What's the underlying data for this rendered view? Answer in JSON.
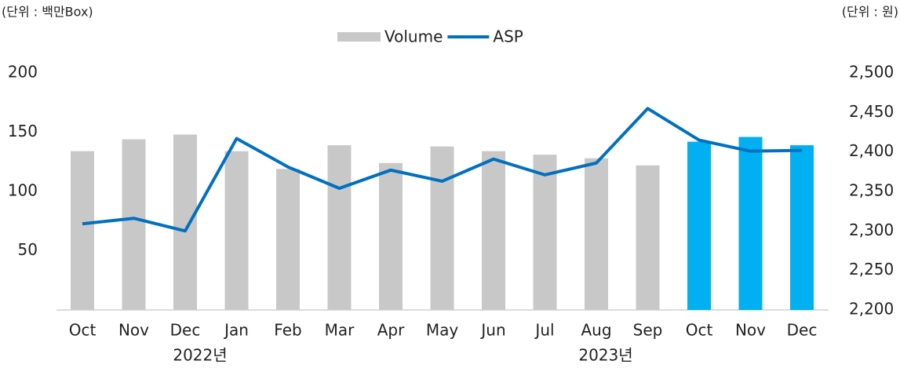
{
  "chart_data": {
    "type": "bar-line",
    "unit_left": "(단위 : 백만Box)",
    "unit_right": "(단위 : 원)",
    "categories": [
      "Oct",
      "Nov",
      "Dec",
      "Jan",
      "Feb",
      "Mar",
      "Apr",
      "May",
      "Jun",
      "Jul",
      "Aug",
      "Sep",
      "Oct",
      "Nov",
      "Dec"
    ],
    "x_groups": [
      "2022년",
      "2023년"
    ],
    "series": [
      {
        "name": "Volume",
        "type": "bar",
        "color": "#c9c8c8",
        "bar_colors": [
          "#c9c8c8",
          "#c9c8c8",
          "#c9c8c8",
          "#c9c8c8",
          "#c9c8c8",
          "#c9c8c8",
          "#c9c8c8",
          "#c9c8c8",
          "#c9c8c8",
          "#c9c8c8",
          "#c9c8c8",
          "#c9c8c8",
          "#00b0f0",
          "#00b0f0",
          "#00b0f0"
        ],
        "values": [
          134,
          144,
          148,
          134,
          119,
          139,
          124,
          138,
          134,
          131,
          128,
          122,
          142,
          146,
          139
        ]
      },
      {
        "name": "ASP",
        "type": "line",
        "color": "#0070c0",
        "axis": "y2",
        "values": [
          2309,
          2316,
          2300,
          2417,
          2381,
          2354,
          2377,
          2363,
          2391,
          2371,
          2386,
          2455,
          2415,
          2401,
          2402
        ]
      }
    ],
    "ylim": [
      0,
      200
    ],
    "yticks": [
      50,
      100,
      150,
      200
    ],
    "y2lim": [
      2200,
      2500
    ],
    "y2ticks": [
      {
        "value": 2200,
        "label": "2,200"
      },
      {
        "value": 2250,
        "label": "2,250"
      },
      {
        "value": 2300,
        "label": "2,300"
      },
      {
        "value": 2350,
        "label": "2,350"
      },
      {
        "value": 2400,
        "label": "2,400"
      },
      {
        "value": 2450,
        "label": "2,450"
      },
      {
        "value": 2500,
        "label": "2,500"
      }
    ],
    "legend": "top"
  }
}
